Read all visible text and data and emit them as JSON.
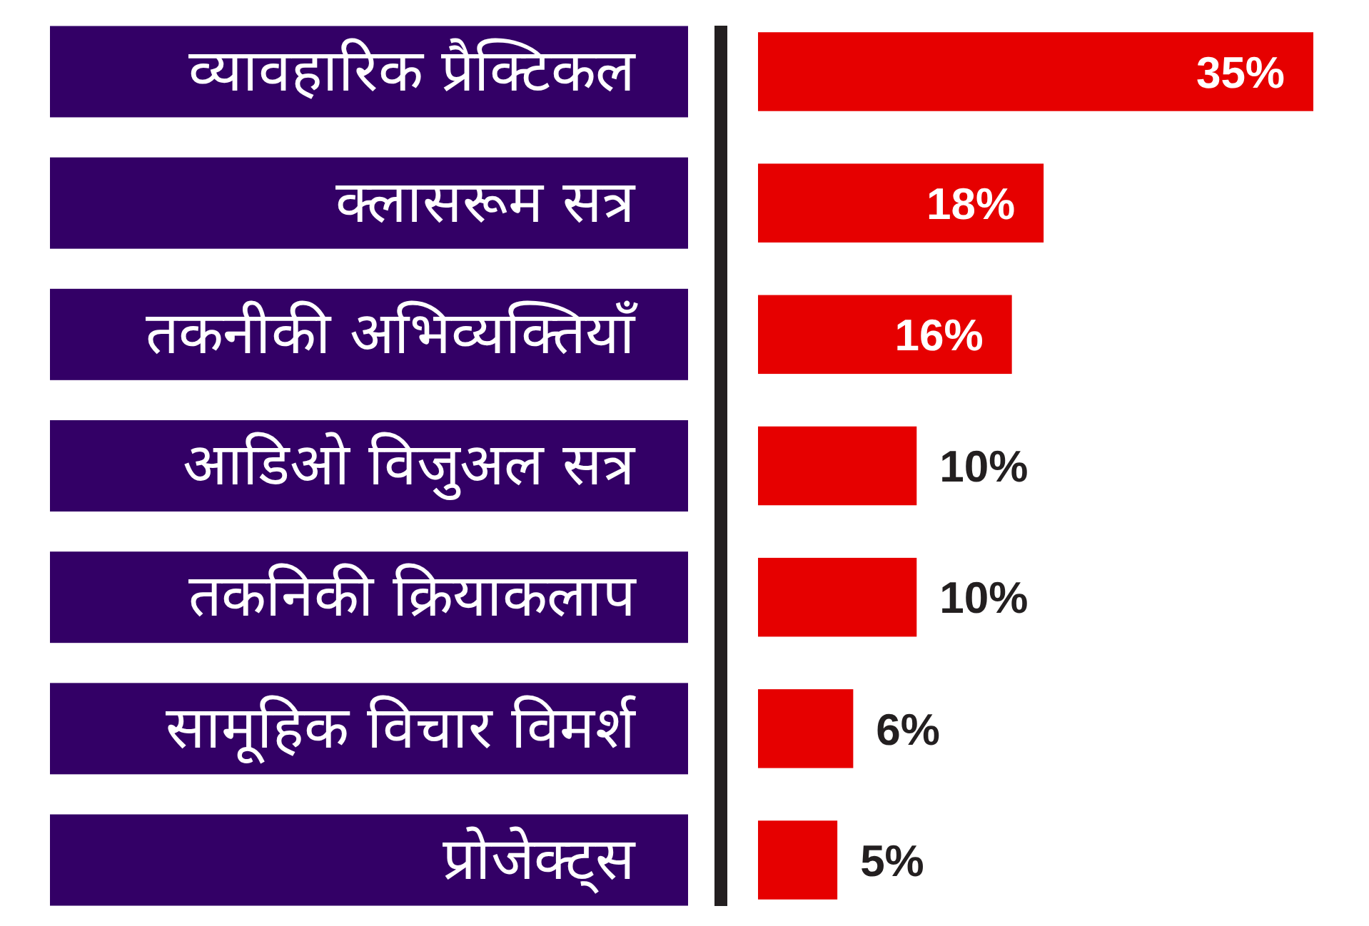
{
  "chart_data": {
    "type": "bar",
    "orientation": "horizontal",
    "categories": [
      "व्यावहारिक प्रैक्टिकल",
      "क्लासरूम सत्र",
      "तकनीकी अभिव्यक्तियाँ",
      "आडिओ विजुअल सत्र",
      "तकनिकी क्रियाकलाप",
      "सामूहिक विचार विमर्श",
      "प्रोजेक्ट्स"
    ],
    "values": [
      35,
      18,
      16,
      10,
      10,
      6,
      5
    ],
    "color": "#e60000",
    "value_labels": [
      "35%",
      "18%",
      "16%",
      "10%",
      "10%",
      "6%",
      "5%"
    ]
  }
}
